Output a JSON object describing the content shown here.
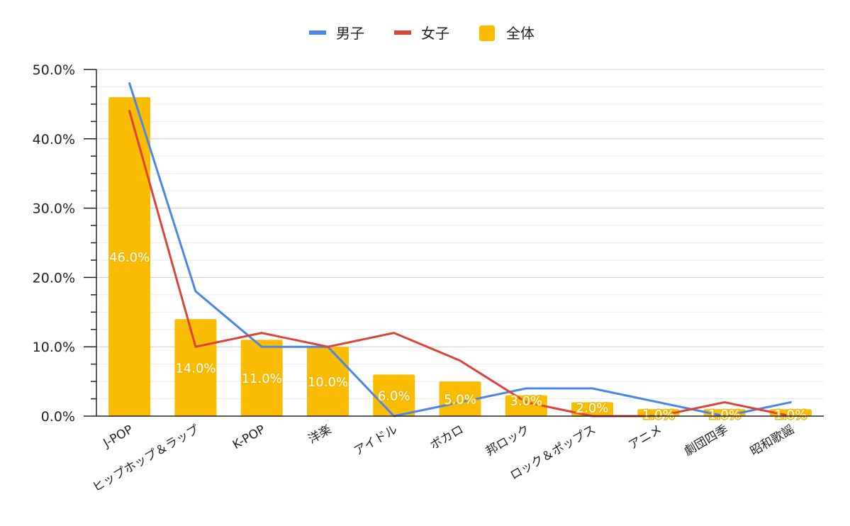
{
  "chart_data": {
    "type": "bar",
    "categories": [
      "J-POP",
      "ヒップホップ＆ラップ",
      "K-POP",
      "洋楽",
      "アイドル",
      "ボカロ",
      "邦ロック",
      "ロック＆ポップス",
      "アニメ",
      "劇団四季",
      "昭和歌謡"
    ],
    "series": [
      {
        "name": "男子",
        "type": "line",
        "color": "#4a86e8",
        "values": [
          48.0,
          18.0,
          10.0,
          10.0,
          0.0,
          2.0,
          4.0,
          4.0,
          2.0,
          0.0,
          2.0
        ]
      },
      {
        "name": "女子",
        "type": "line",
        "color": "#db4437",
        "values": [
          44.0,
          10.0,
          12.0,
          10.0,
          12.0,
          8.0,
          2.0,
          0.0,
          0.0,
          2.0,
          0.0
        ]
      },
      {
        "name": "全体",
        "type": "bar",
        "color": "#fbbc04",
        "values": [
          46.0,
          14.0,
          11.0,
          10.0,
          6.0,
          5.0,
          3.0,
          2.0,
          1.0,
          1.0,
          1.0
        ]
      }
    ],
    "data_labels": [
      "46.0%",
      "14.0%",
      "11.0%",
      "10.0%",
      "6.0%",
      "5.0%",
      "3.0%",
      "2.0%",
      "1.0%",
      "1.0%",
      "1.0%"
    ],
    "y_ticks": [
      "0.0%",
      "10.0%",
      "20.0%",
      "30.0%",
      "40.0%",
      "50.0%"
    ],
    "ylim": [
      0,
      50
    ],
    "minor_gridlines_per_major": 3,
    "grid": true,
    "legend_position": "top",
    "title": "",
    "xlabel": "",
    "ylabel": ""
  }
}
